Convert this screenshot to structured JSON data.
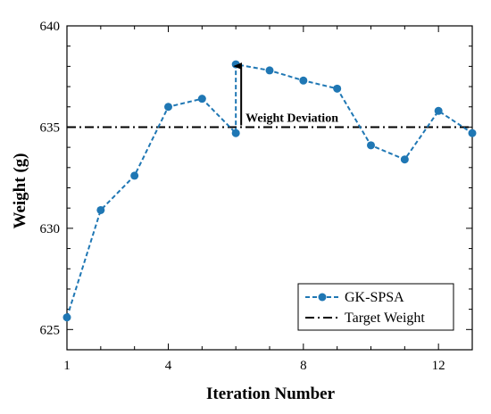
{
  "chart_data": {
    "type": "line",
    "xlabel": "Iteration Number",
    "ylabel": "Weight (g)",
    "xlim": [
      1,
      13
    ],
    "ylim": [
      624,
      640
    ],
    "xticks": [
      1,
      4,
      8,
      12
    ],
    "yticks": [
      625,
      630,
      635,
      640
    ],
    "x_minor_ticks": [
      2,
      3,
      5,
      6,
      7,
      9,
      10,
      11,
      13
    ],
    "y_minor_ticks": [
      626,
      627,
      628,
      629,
      631,
      632,
      633,
      634,
      636,
      637,
      638,
      639
    ],
    "grid": false,
    "legend_position": "bottom-right",
    "series": [
      {
        "name": "GK-SPSA",
        "style": "dashed-with-markers",
        "color": "#1f77b4",
        "x": [
          1,
          2,
          3,
          4,
          5,
          6,
          6,
          7,
          8,
          9,
          10,
          11,
          12,
          13
        ],
        "y": [
          625.6,
          630.9,
          632.6,
          636.0,
          636.4,
          634.7,
          638.1,
          637.8,
          637.3,
          636.9,
          634.1,
          633.4,
          635.8,
          634.7
        ]
      },
      {
        "name": "Target Weight",
        "style": "dash-dot",
        "color": "#000000",
        "x": [
          1,
          13
        ],
        "y": [
          635,
          635
        ]
      }
    ],
    "annotations": [
      {
        "text": "Weight Deviation",
        "arrow_x": 6,
        "arrow_from_y": 635,
        "arrow_to_y": 638.1
      }
    ]
  }
}
